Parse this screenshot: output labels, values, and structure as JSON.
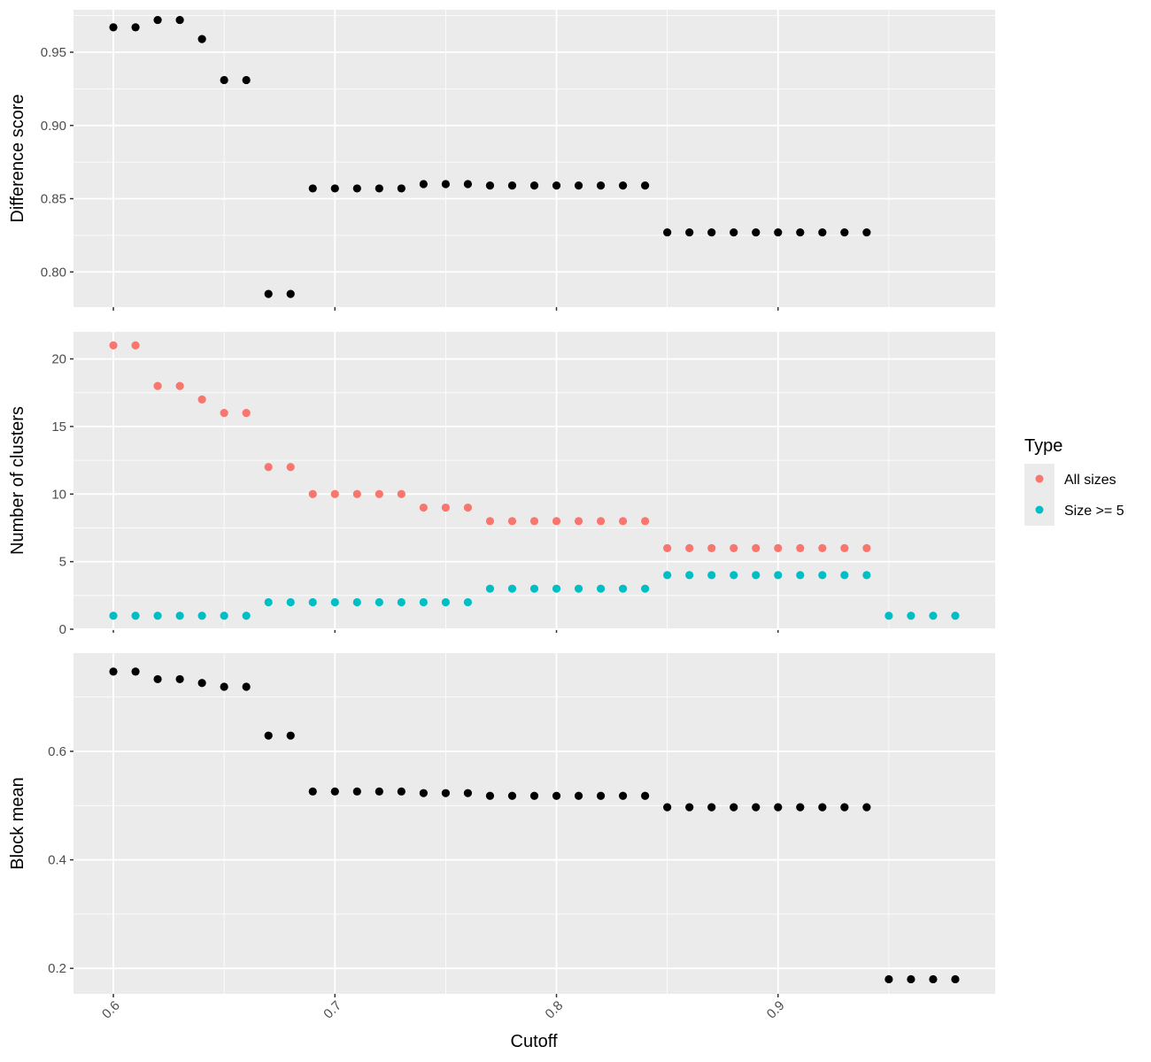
{
  "chart_data": {
    "type": "scatter",
    "xlabel": "Cutoff",
    "x_ticks": [
      0.6,
      0.7,
      0.8,
      0.9
    ],
    "xlim": [
      0.582,
      0.998
    ],
    "legend": {
      "title": "Type",
      "placement": "right",
      "entries": [
        {
          "label": "All sizes",
          "color": "#F8766D"
        },
        {
          "label": "Size >= 5",
          "color": "#00BFC4"
        }
      ]
    },
    "panels": [
      {
        "ylabel": "Difference score",
        "ylim": [
          0.776,
          0.979
        ],
        "y_ticks": [
          0.8,
          0.85,
          0.9,
          0.95
        ],
        "tick_labels": [
          "0.80",
          "0.85",
          "0.90",
          "0.95"
        ],
        "series": [
          {
            "color": "#000000",
            "x": [
              0.6,
              0.61,
              0.62,
              0.63,
              0.64,
              0.65,
              0.66,
              0.67,
              0.68,
              0.69,
              0.7,
              0.71,
              0.72,
              0.73,
              0.74,
              0.75,
              0.76,
              0.77,
              0.78,
              0.79,
              0.8,
              0.81,
              0.82,
              0.83,
              0.84,
              0.85,
              0.86,
              0.87,
              0.88,
              0.89,
              0.9,
              0.91,
              0.92,
              0.93,
              0.94
            ],
            "y": [
              0.967,
              0.967,
              0.972,
              0.972,
              0.959,
              0.931,
              0.931,
              0.785,
              0.785,
              0.857,
              0.857,
              0.857,
              0.857,
              0.857,
              0.86,
              0.86,
              0.86,
              0.859,
              0.859,
              0.859,
              0.859,
              0.859,
              0.859,
              0.859,
              0.859,
              0.827,
              0.827,
              0.827,
              0.827,
              0.827,
              0.827,
              0.827,
              0.827,
              0.827,
              0.827
            ]
          }
        ]
      },
      {
        "ylabel": "Number of clusters",
        "ylim": [
          0,
          22
        ],
        "y_ticks": [
          0,
          5,
          10,
          15,
          20
        ],
        "tick_labels": [
          "0",
          "5",
          "10",
          "15",
          "20"
        ],
        "series": [
          {
            "name": "All sizes",
            "color": "#F8766D",
            "x": [
              0.6,
              0.61,
              0.62,
              0.63,
              0.64,
              0.65,
              0.66,
              0.67,
              0.68,
              0.69,
              0.7,
              0.71,
              0.72,
              0.73,
              0.74,
              0.75,
              0.76,
              0.77,
              0.78,
              0.79,
              0.8,
              0.81,
              0.82,
              0.83,
              0.84,
              0.85,
              0.86,
              0.87,
              0.88,
              0.89,
              0.9,
              0.91,
              0.92,
              0.93,
              0.94
            ],
            "y": [
              21,
              21,
              18,
              18,
              17,
              16,
              16,
              12,
              12,
              10,
              10,
              10,
              10,
              10,
              9,
              9,
              9,
              8,
              8,
              8,
              8,
              8,
              8,
              8,
              8,
              6,
              6,
              6,
              6,
              6,
              6,
              6,
              6,
              6,
              6
            ]
          },
          {
            "name": "Size >= 5",
            "color": "#00BFC4",
            "x": [
              0.6,
              0.61,
              0.62,
              0.63,
              0.64,
              0.65,
              0.66,
              0.67,
              0.68,
              0.69,
              0.7,
              0.71,
              0.72,
              0.73,
              0.74,
              0.75,
              0.76,
              0.77,
              0.78,
              0.79,
              0.8,
              0.81,
              0.82,
              0.83,
              0.84,
              0.85,
              0.86,
              0.87,
              0.88,
              0.89,
              0.9,
              0.91,
              0.92,
              0.93,
              0.94,
              0.95,
              0.96,
              0.97,
              0.98
            ],
            "y": [
              1,
              1,
              1,
              1,
              1,
              1,
              1,
              2,
              2,
              2,
              2,
              2,
              2,
              2,
              2,
              2,
              2,
              3,
              3,
              3,
              3,
              3,
              3,
              3,
              3,
              4,
              4,
              4,
              4,
              4,
              4,
              4,
              4,
              4,
              4,
              1,
              1,
              1,
              1
            ]
          }
        ]
      },
      {
        "ylabel": "Block mean",
        "ylim": [
          0.153,
          0.781
        ],
        "y_ticks": [
          0.2,
          0.4,
          0.6
        ],
        "tick_labels": [
          "0.2",
          "0.4",
          "0.6"
        ],
        "series": [
          {
            "color": "#000000",
            "x": [
              0.6,
              0.61,
              0.62,
              0.63,
              0.64,
              0.65,
              0.66,
              0.67,
              0.68,
              0.69,
              0.7,
              0.71,
              0.72,
              0.73,
              0.74,
              0.75,
              0.76,
              0.77,
              0.78,
              0.79,
              0.8,
              0.81,
              0.82,
              0.83,
              0.84,
              0.85,
              0.86,
              0.87,
              0.88,
              0.89,
              0.9,
              0.91,
              0.92,
              0.93,
              0.94,
              0.95,
              0.96,
              0.97,
              0.98
            ],
            "y": [
              0.747,
              0.747,
              0.733,
              0.733,
              0.726,
              0.719,
              0.719,
              0.629,
              0.629,
              0.526,
              0.526,
              0.526,
              0.526,
              0.526,
              0.523,
              0.523,
              0.523,
              0.518,
              0.518,
              0.518,
              0.518,
              0.518,
              0.518,
              0.518,
              0.518,
              0.497,
              0.497,
              0.497,
              0.497,
              0.497,
              0.497,
              0.497,
              0.497,
              0.497,
              0.497,
              0.18,
              0.18,
              0.18,
              0.18
            ]
          }
        ]
      }
    ]
  }
}
